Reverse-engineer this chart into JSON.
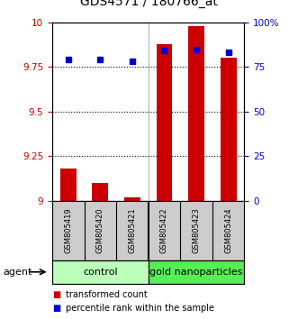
{
  "title": "GDS4571 / 180766_at",
  "samples": [
    "GSM805419",
    "GSM805420",
    "GSM805421",
    "GSM805422",
    "GSM805423",
    "GSM805424"
  ],
  "transformed_count": [
    9.18,
    9.1,
    9.02,
    9.88,
    9.98,
    9.8
  ],
  "percentile_rank": [
    79,
    79,
    78,
    84,
    85,
    83
  ],
  "ylim_left": [
    9.0,
    10.0
  ],
  "ylim_right": [
    0,
    100
  ],
  "yticks_left": [
    9.0,
    9.25,
    9.5,
    9.75,
    10.0
  ],
  "yticks_right": [
    0,
    25,
    50,
    75,
    100
  ],
  "ytick_labels_left": [
    "9",
    "9.25",
    "9.5",
    "9.75",
    "10"
  ],
  "ytick_labels_right": [
    "0",
    "25",
    "50",
    "75",
    "100%"
  ],
  "bar_color": "#cc0000",
  "dot_color": "#0000cc",
  "groups": [
    {
      "label": "control",
      "indices": [
        0,
        1,
        2
      ],
      "color": "#bbffbb"
    },
    {
      "label": "gold nanoparticles",
      "indices": [
        3,
        4,
        5
      ],
      "color": "#55ee55"
    }
  ],
  "agent_label": "agent",
  "legend_items": [
    {
      "label": "transformed count",
      "color": "#cc0000"
    },
    {
      "label": "percentile rank within the sample",
      "color": "#0000cc"
    }
  ],
  "background_color": "#ffffff",
  "sample_box_color": "#cccccc",
  "bar_width": 0.5,
  "title_fontsize": 10,
  "tick_fontsize": 7.5,
  "sample_fontsize": 6,
  "group_fontsize": 8,
  "legend_fontsize": 7
}
